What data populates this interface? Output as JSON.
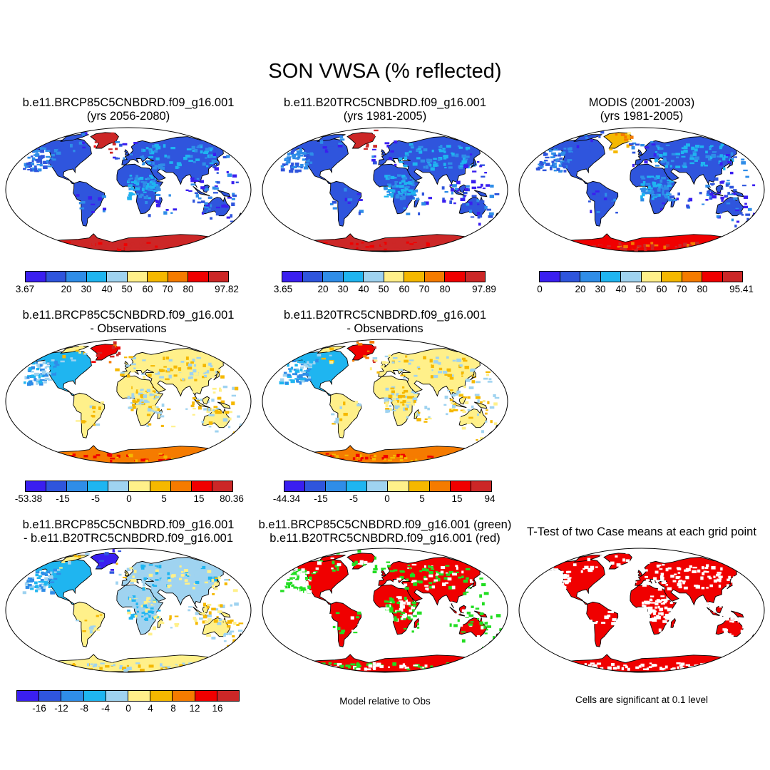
{
  "title": "SON VWSA (% reflected)",
  "panels": [
    {
      "line1": "b.e11.BRCP85C5CNBDRD.f09_g16.001",
      "line2": "(yrs 2056-2080)"
    },
    {
      "line1": "b.e11.B20TRC5CNBDRD.f09_g16.001",
      "line2": "(yrs 1981-2005)"
    },
    {
      "line1": "MODIS (2001-2003)",
      "line2": "(yrs 1981-2005)"
    },
    {
      "line1": "b.e11.BRCP85C5CNBDRD.f09_g16.001",
      "line2": "- Observations"
    },
    {
      "line1": "b.e11.B20TRC5CNBDRD.f09_g16.001",
      "line2": "- Observations"
    },
    {
      "line1": "b.e11.BRCP85C5CNBDRD.f09_g16.001",
      "line2": "- b.e11.B20TRC5CNBDRD.f09_g16.001"
    },
    {
      "line1": "b.e11.BRCP85C5CNBDRD.f09_g16.001 (green)",
      "line2": "b.e11.B20TRC5CNBDRD.f09_g16.001 (red)"
    },
    {
      "line1": "T-Test of two Case means at each grid point",
      "line2": ""
    }
  ],
  "colorbars": [
    {
      "labels": [
        "3.67",
        "20",
        "30",
        "40",
        "50",
        "60",
        "70",
        "80",
        "97.82"
      ]
    },
    {
      "labels": [
        "3.65",
        "20",
        "30",
        "40",
        "50",
        "60",
        "70",
        "80",
        "97.89"
      ]
    },
    {
      "labels": [
        "0",
        "20",
        "30",
        "40",
        "50",
        "60",
        "70",
        "80",
        "95.41"
      ]
    },
    {
      "labels": [
        "-53.38",
        "-15",
        "-5",
        "0",
        "5",
        "15",
        "80.36"
      ]
    },
    {
      "labels": [
        "-44.34",
        "-15",
        "-5",
        "0",
        "5",
        "15",
        "94"
      ]
    },
    {
      "labels": [
        "-16",
        "-12",
        "-8",
        "-4",
        "0",
        "4",
        "8",
        "12",
        "16"
      ]
    }
  ],
  "palette_abs": [
    "#3a1ff0",
    "#2f55dd",
    "#2f8de8",
    "#1fb5f0",
    "#9fd3f0",
    "#fff08a",
    "#f5b800",
    "#f57b00",
    "#f00000",
    "#cc2727"
  ],
  "palette_diff": [
    "#3a1ff0",
    "#2f55dd",
    "#2f8de8",
    "#1fb5f0",
    "#9fd3f0",
    "#fff08a",
    "#f5b800",
    "#f57b00",
    "#f00000",
    "#cc2727"
  ],
  "notes": {
    "model_relative": "Model relative to Obs",
    "significance": "Cells are significant at 0.1 level"
  }
}
